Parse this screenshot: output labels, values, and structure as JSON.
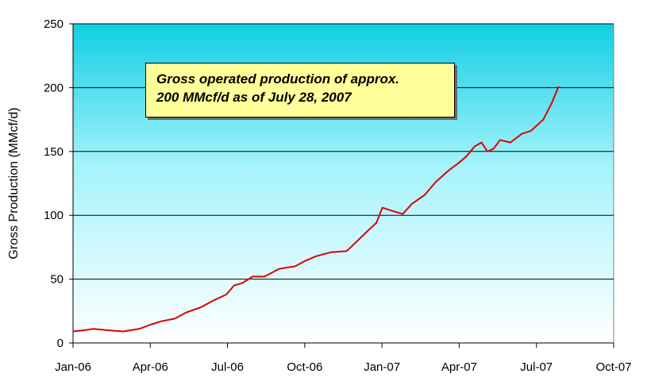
{
  "chart_data": {
    "type": "line",
    "title": "",
    "xlabel": "",
    "ylabel": "Gross Production (MMcf/d)",
    "ylim": [
      0,
      250
    ],
    "yticks": [
      0,
      50,
      100,
      150,
      200,
      250
    ],
    "xticks": [
      "Jan-06",
      "Apr-06",
      "Jul-06",
      "Oct-06",
      "Jan-07",
      "Apr-07",
      "Jul-07",
      "Oct-07"
    ],
    "xlim": [
      "2006-01-01",
      "2007-10-01"
    ],
    "grid": "horizontal",
    "background": "gradient-cyan-to-white",
    "series": [
      {
        "color": "#dd0000",
        "x": [
          "2006-01-01",
          "2006-01-15",
          "2006-01-25",
          "2006-02-10",
          "2006-03-01",
          "2006-03-20",
          "2006-04-01",
          "2006-04-15",
          "2006-05-01",
          "2006-05-15",
          "2006-06-01",
          "2006-06-15",
          "2006-07-01",
          "2006-07-10",
          "2006-07-20",
          "2006-08-01",
          "2006-08-15",
          "2006-09-01",
          "2006-09-10",
          "2006-09-20",
          "2006-10-01",
          "2006-10-15",
          "2006-11-01",
          "2006-11-20",
          "2006-12-01",
          "2006-12-15",
          "2006-12-25",
          "2007-01-01",
          "2007-01-15",
          "2007-01-25",
          "2007-02-05",
          "2007-02-20",
          "2007-03-05",
          "2007-03-20",
          "2007-04-01",
          "2007-04-10",
          "2007-04-20",
          "2007-04-28",
          "2007-05-05",
          "2007-05-12",
          "2007-05-20",
          "2007-06-01",
          "2007-06-15",
          "2007-06-25",
          "2007-07-10",
          "2007-07-20",
          "2007-07-28"
        ],
        "y": [
          9,
          10,
          11,
          10,
          9,
          11,
          14,
          17,
          19,
          24,
          28,
          33,
          38,
          45,
          47,
          52,
          52,
          58,
          59,
          60,
          64,
          68,
          71,
          72,
          79,
          88,
          94,
          106,
          103,
          101,
          109,
          116,
          126,
          135,
          141,
          146,
          154,
          157,
          150,
          152,
          159,
          157,
          164,
          166,
          175,
          188,
          201
        ]
      }
    ]
  },
  "annotation": {
    "line1": "Gross operated production of approx.",
    "line2": "200 MMcf/d as of July 28, 2007"
  }
}
